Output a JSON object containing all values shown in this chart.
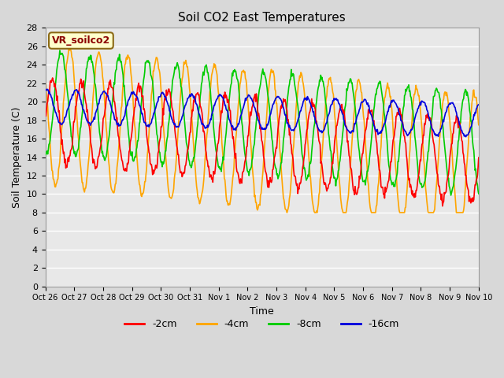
{
  "title": "Soil CO2 East Temperatures",
  "xlabel": "Time",
  "ylabel": "Soil Temperature (C)",
  "ylim": [
    0,
    28
  ],
  "yticks": [
    0,
    2,
    4,
    6,
    8,
    10,
    12,
    14,
    16,
    18,
    20,
    22,
    24,
    26,
    28
  ],
  "xtick_labels": [
    "Oct 26",
    "Oct 27",
    "Oct 28",
    "Oct 29",
    "Oct 30",
    "Oct 31",
    "Nov 1",
    "Nov 2",
    "Nov 3",
    "Nov 4",
    "Nov 5",
    "Nov 6",
    "Nov 7",
    "Nov 8",
    "Nov 9",
    "Nov 10"
  ],
  "colors": {
    "-2cm": "#ff0000",
    "-4cm": "#ffa500",
    "-8cm": "#00cc00",
    "-16cm": "#0000dd"
  },
  "annotation_text": "VR_soilco2",
  "annotation_color": "#8B0000",
  "annotation_bg": "#ffffcc",
  "annotation_border": "#8B6914",
  "plot_bg": "#e8e8e8",
  "fig_bg": "#d8d8d8",
  "grid_color": "#ffffff",
  "linewidth": 1.2
}
